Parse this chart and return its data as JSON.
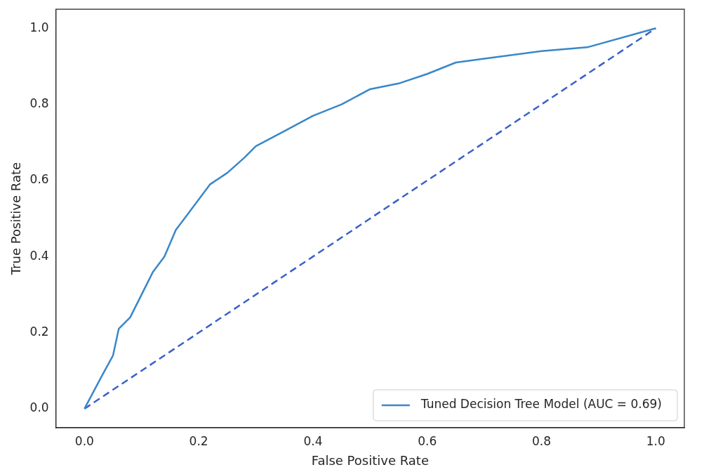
{
  "chart_data": {
    "type": "line",
    "xlabel": "False Positive Rate",
    "ylabel": "True Positive Rate",
    "xlim": [
      -0.05,
      1.05
    ],
    "ylim": [
      -0.05,
      1.05
    ],
    "xticks": [
      {
        "value": 0,
        "label": "0.0"
      },
      {
        "value": 0.2,
        "label": "0.2"
      },
      {
        "value": 0.4,
        "label": "0.4"
      },
      {
        "value": 0.6,
        "label": "0.6"
      },
      {
        "value": 0.8,
        "label": "0.8"
      },
      {
        "value": 1,
        "label": "1.0"
      }
    ],
    "yticks": [
      {
        "value": 0,
        "label": "0.0"
      },
      {
        "value": 0.2,
        "label": "0.2"
      },
      {
        "value": 0.4,
        "label": "0.4"
      },
      {
        "value": 0.6,
        "label": "0.6"
      },
      {
        "value": 0.8,
        "label": "0.8"
      },
      {
        "value": 1,
        "label": "1.0"
      }
    ],
    "grid": false,
    "legend": "bottom right",
    "marker": "none",
    "series": [
      {
        "name": "Tuned Decision Tree Model (AUC = 0.69)",
        "color": "#3a87c8",
        "line_style": "solid",
        "x": [
          0,
          0.03,
          0.05,
          0.06,
          0.08,
          0.1,
          0.12,
          0.14,
          0.16,
          0.18,
          0.2,
          0.22,
          0.25,
          0.28,
          0.3,
          0.35,
          0.4,
          0.45,
          0.5,
          0.55,
          0.6,
          0.65,
          0.7,
          0.8,
          0.88,
          1
        ],
        "values": [
          0,
          0.085,
          0.14,
          0.21,
          0.24,
          0.3,
          0.36,
          0.4,
          0.47,
          0.51,
          0.55,
          0.59,
          0.62,
          0.66,
          0.69,
          0.73,
          0.77,
          0.8,
          0.84,
          0.855,
          0.88,
          0.91,
          0.92,
          0.94,
          0.95,
          1
        ]
      },
      {
        "color": "#3a5fcd",
        "line_style": "dashed",
        "x": [
          0,
          1
        ],
        "values": [
          0,
          1
        ]
      }
    ]
  }
}
